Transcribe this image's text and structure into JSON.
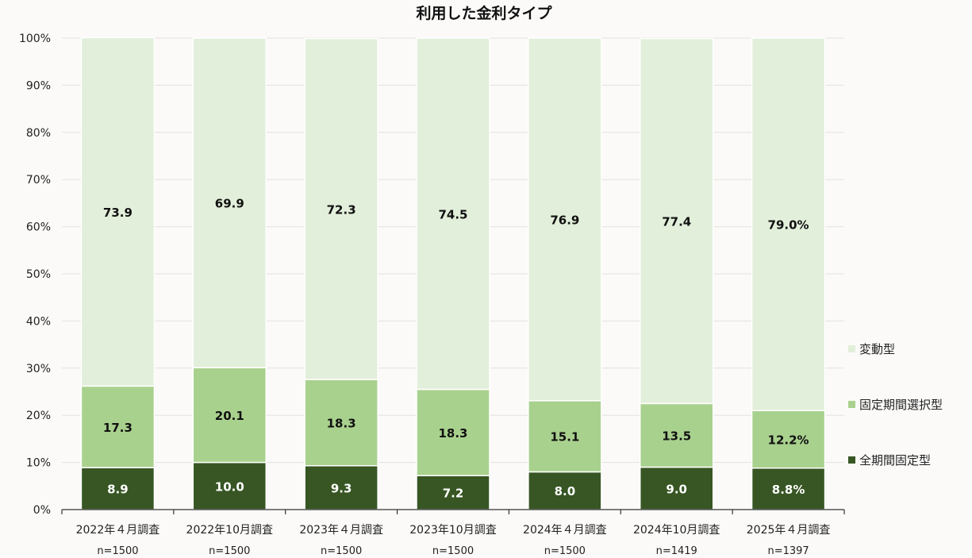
{
  "chart_data": {
    "type": "bar",
    "stacked": true,
    "percent": true,
    "title": "利用した金利タイプ",
    "categories": [
      "2022年４月調査",
      "2022年10月調査",
      "2023年４月調査",
      "2023年10月調査",
      "2024年４月調査",
      "2024年10月調査",
      "2025年４月調査"
    ],
    "sample_sizes": [
      "n=1500",
      "n=1500",
      "n=1500",
      "n=1500",
      "n=1500",
      "n=1419",
      "n=1397"
    ],
    "series": [
      {
        "name": "全期間固定型",
        "color": "#375623",
        "label_color": "#ffffff",
        "values": [
          8.9,
          10.0,
          9.3,
          7.2,
          8.0,
          9.0,
          8.8
        ],
        "labels": [
          "8.9",
          "10.0",
          "9.3",
          "7.2",
          "8.0",
          "9.0",
          "8.8%"
        ]
      },
      {
        "name": "固定期間選択型",
        "color": "#a9d18e",
        "label_color": "#111111",
        "values": [
          17.3,
          20.1,
          18.3,
          18.3,
          15.1,
          13.5,
          12.2
        ],
        "labels": [
          "17.3",
          "20.1",
          "18.3",
          "18.3",
          "15.1",
          "13.5",
          "12.2%"
        ]
      },
      {
        "name": "変動型",
        "color": "#e2efda",
        "label_color": "#111111",
        "values": [
          73.9,
          69.9,
          72.3,
          74.5,
          76.9,
          77.4,
          79.0
        ],
        "labels": [
          "73.9",
          "69.9",
          "72.3",
          "74.5",
          "76.9",
          "77.4",
          "79.0%"
        ]
      }
    ],
    "ylim": [
      0,
      100
    ],
    "yticks": [
      "0%",
      "10%",
      "20%",
      "30%",
      "40%",
      "50%",
      "60%",
      "70%",
      "80%",
      "90%",
      "100%"
    ],
    "grid": true,
    "legend_position": "right"
  }
}
